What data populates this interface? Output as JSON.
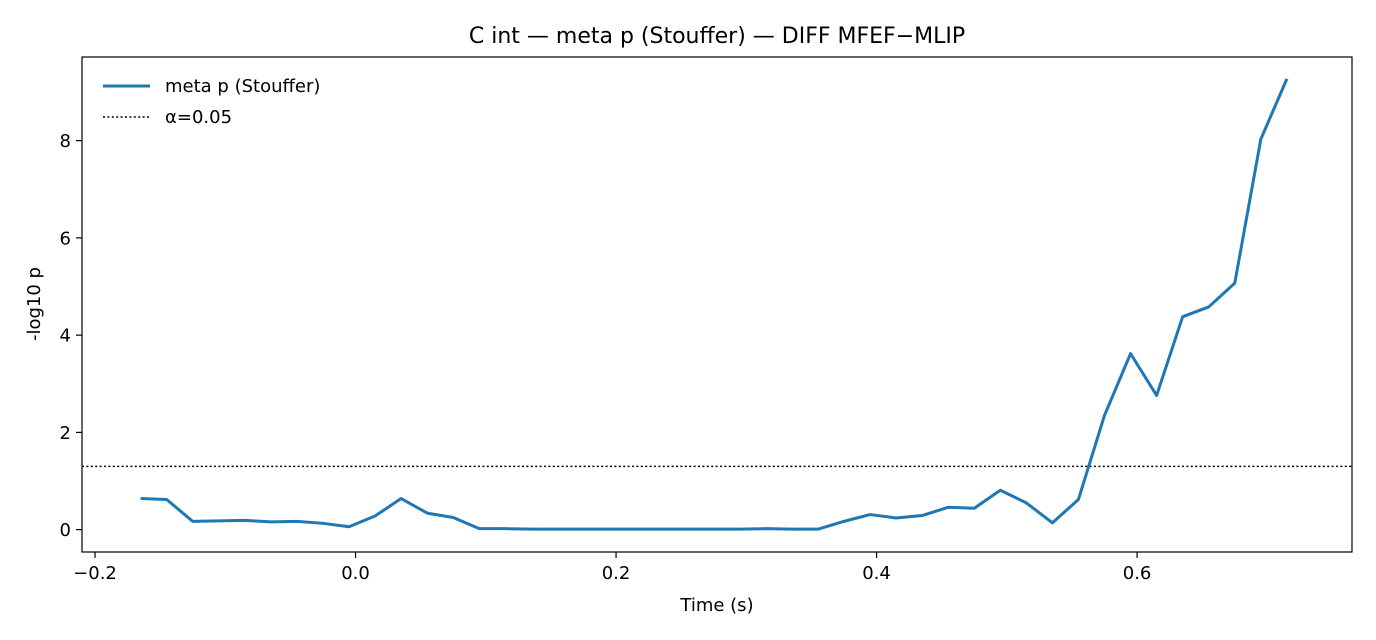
{
  "chart_data": {
    "type": "line",
    "title": "C int — meta p (Stouffer) — DIFF MFEF−MLIP",
    "xlabel": "Time (s)",
    "ylabel": "-log10 p",
    "xlim": [
      -0.21,
      0.765
    ],
    "ylim": [
      -0.46,
      9.72
    ],
    "xticks": [
      -0.2,
      0.0,
      0.2,
      0.4,
      0.6
    ],
    "xtick_labels": [
      "−0.2",
      "0.0",
      "0.2",
      "0.4",
      "0.6"
    ],
    "yticks": [
      0,
      2,
      4,
      6,
      8
    ],
    "ytick_labels": [
      "0",
      "2",
      "4",
      "6",
      "8"
    ],
    "grid": false,
    "legend_position": "top-left",
    "series": [
      {
        "name": "meta p (Stouffer)",
        "color": "#1f77b4",
        "style": "solid",
        "x": [
          -0.165,
          -0.145,
          -0.125,
          -0.105,
          -0.085,
          -0.065,
          -0.045,
          -0.025,
          -0.005,
          0.015,
          0.035,
          0.055,
          0.075,
          0.095,
          0.115,
          0.135,
          0.155,
          0.175,
          0.195,
          0.215,
          0.235,
          0.255,
          0.275,
          0.295,
          0.315,
          0.335,
          0.355,
          0.375,
          0.395,
          0.415,
          0.435,
          0.455,
          0.475,
          0.495,
          0.515,
          0.535,
          0.555,
          0.575,
          0.595,
          0.615,
          0.635,
          0.655,
          0.675,
          0.695,
          0.715
        ],
        "y": [
          0.64,
          0.62,
          0.17,
          0.18,
          0.19,
          0.16,
          0.17,
          0.13,
          0.06,
          0.28,
          0.64,
          0.34,
          0.25,
          0.02,
          0.02,
          0.01,
          0.01,
          0.01,
          0.01,
          0.01,
          0.01,
          0.01,
          0.01,
          0.01,
          0.02,
          0.01,
          0.01,
          0.17,
          0.31,
          0.24,
          0.29,
          0.46,
          0.44,
          0.81,
          0.55,
          0.14,
          0.62,
          2.35,
          3.62,
          2.76,
          4.38,
          4.58,
          5.07,
          8.03,
          9.27
        ]
      }
    ],
    "reference_lines": [
      {
        "name": "α=0.05",
        "y": 1.301,
        "color": "#000000",
        "style": "dotted"
      }
    ]
  }
}
